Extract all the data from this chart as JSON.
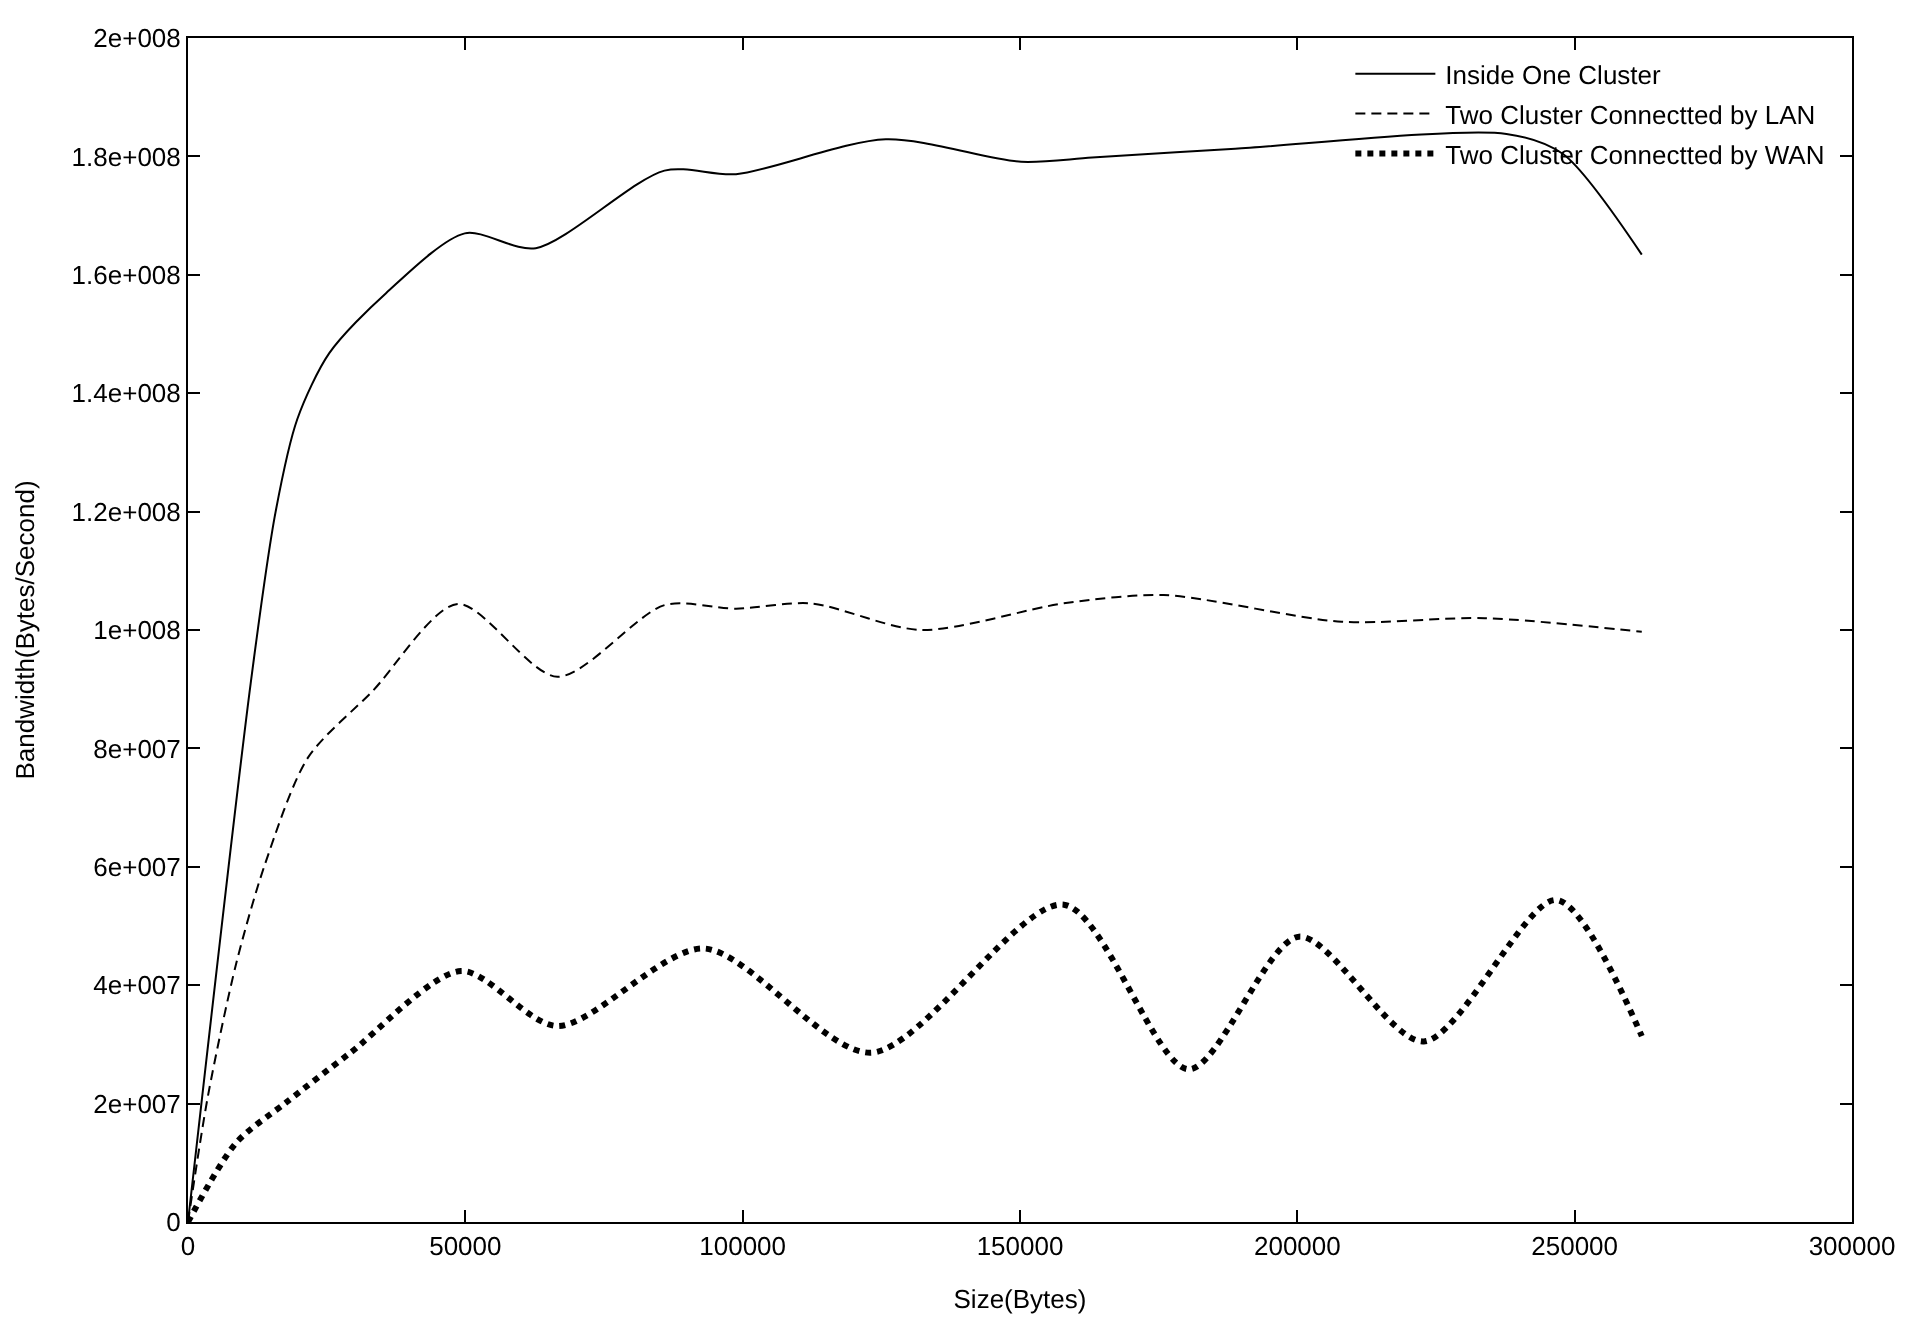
{
  "chart_data": {
    "type": "line",
    "xlabel": "Size(Bytes)",
    "ylabel": "Bandwidth(Bytes/Second)",
    "xlim": [
      0,
      300000
    ],
    "xticks": [
      0,
      50000,
      100000,
      150000,
      200000,
      250000,
      300000
    ],
    "ylim": [
      0,
      200000000
    ],
    "yticks": [
      0,
      {
        "value": 20000000,
        "label": "2e+007"
      },
      {
        "value": 40000000,
        "label": "4e+007"
      },
      {
        "value": 60000000,
        "label": "6e+007"
      },
      {
        "value": 80000000,
        "label": "8e+007"
      },
      {
        "value": 100000000,
        "label": "1e+008"
      },
      {
        "value": 120000000,
        "label": "1.2e+008"
      },
      {
        "value": 140000000,
        "label": "1.4e+008"
      },
      {
        "value": 160000000,
        "label": "1.6e+008"
      },
      {
        "value": 180000000,
        "label": "1.8e+008"
      },
      {
        "value": 200000000,
        "label": "2e+008"
      }
    ],
    "legend": "top right",
    "marker": "none",
    "series": [
      {
        "name": "Inside One Cluster",
        "color": "#000000",
        "line_style": "solid",
        "x": [
          0,
          11300,
          15800,
          19700,
          25500,
          35700,
          49900,
          62700,
          85900,
          98800,
          125800,
          150200,
          163000,
          188800,
          237700,
          247900,
          262100
        ],
        "values": [
          0,
          91000000,
          120000000,
          135600000,
          146800000,
          156900000,
          167000000,
          164500000,
          177600000,
          177000000,
          182900000,
          179100000,
          179800000,
          181300000,
          183800000,
          180400000,
          163400000
        ]
      },
      {
        "name": "Two Cluster Connectted by LAN",
        "color": "#000000",
        "line_style": "dashed",
        "x": [
          0,
          3600,
          8700,
          13900,
          21600,
          33200,
          48600,
          66600,
          85900,
          98800,
          112300,
          132200,
          157900,
          175900,
          208000,
          233800,
          262100
        ],
        "values": [
          0,
          21300000,
          43700000,
          60500000,
          78400000,
          89600000,
          104400000,
          92100000,
          104200000,
          103600000,
          104500000,
          100000000,
          104500000,
          105900000,
          101400000,
          102000000,
          99700000
        ]
      },
      {
        "name": "Two Cluster Connectted by WAN",
        "color": "#000000",
        "line_style": "dotted",
        "x": [
          0,
          8700,
          17700,
          29300,
          49200,
          66600,
          93000,
          123200,
          157900,
          180400,
          200300,
          222800,
          246700,
          262100
        ],
        "values": [
          0,
          13400000,
          20200000,
          28600000,
          42400000,
          33100000,
          46200000,
          28600000,
          53600000,
          25800000,
          48200000,
          30500000,
          54400000,
          31400000
        ]
      }
    ]
  }
}
